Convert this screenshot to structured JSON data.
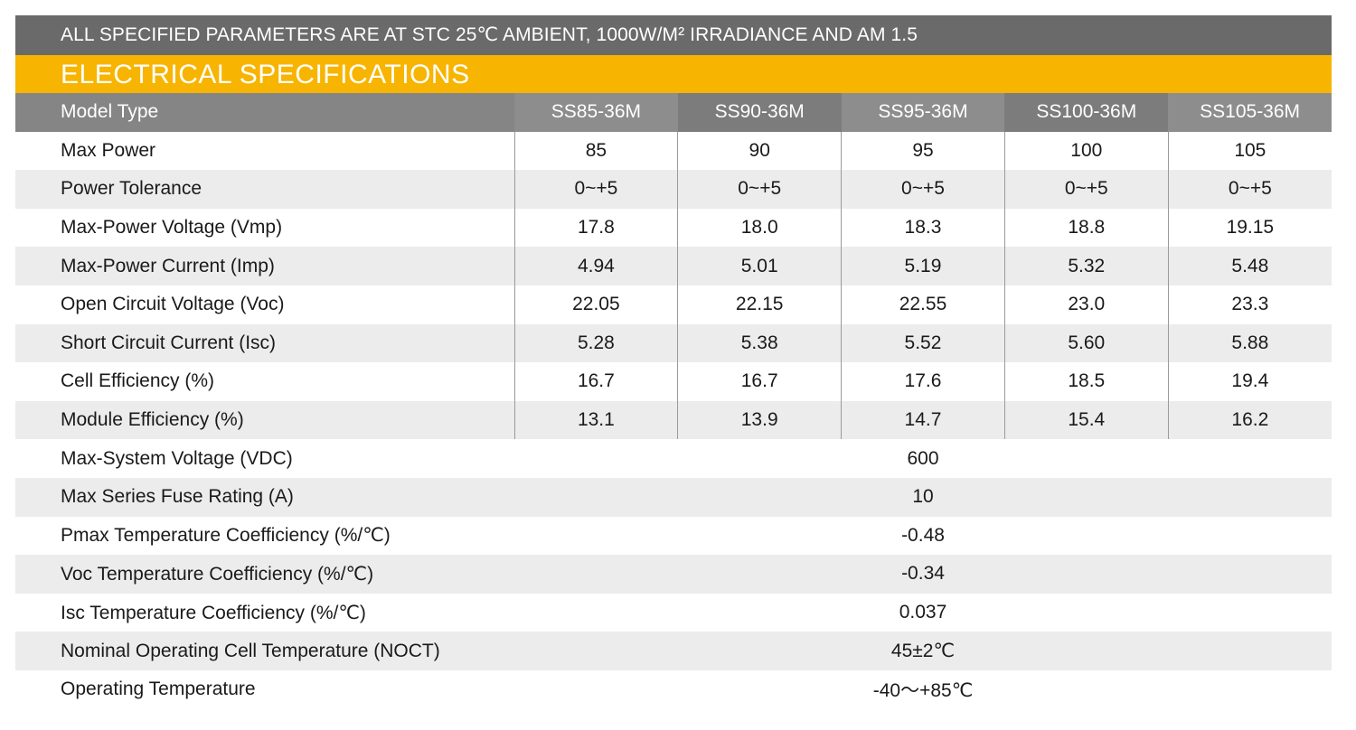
{
  "stc_note": "ALL SPECIFIED PARAMETERS ARE AT STC 25℃ AMBIENT, 1000W/M² IRRADIANCE AND AM 1.5",
  "section_title": "ELECTRICAL SPECIFICATIONS",
  "header": {
    "label": "Model Type",
    "models": [
      "SS85-36M",
      "SS90-36M",
      "SS95-36M",
      "SS100-36M",
      "SS105-36M"
    ]
  },
  "per_model_rows": [
    {
      "label": "Max Power",
      "values": [
        "85",
        "90",
        "95",
        "100",
        "105"
      ]
    },
    {
      "label": "Power Tolerance",
      "values": [
        "0~+5",
        "0~+5",
        "0~+5",
        "0~+5",
        "0~+5"
      ]
    },
    {
      "label": "Max-Power Voltage (Vmp)",
      "values": [
        "17.8",
        "18.0",
        "18.3",
        "18.8",
        "19.15"
      ]
    },
    {
      "label": "Max-Power Current (Imp)",
      "values": [
        "4.94",
        "5.01",
        "5.19",
        "5.32",
        "5.48"
      ]
    },
    {
      "label": "Open Circuit Voltage (Voc)",
      "values": [
        "22.05",
        "22.15",
        "22.55",
        "23.0",
        "23.3"
      ]
    },
    {
      "label": "Short Circuit Current (Isc)",
      "values": [
        "5.28",
        "5.38",
        "5.52",
        "5.60",
        "5.88"
      ]
    },
    {
      "label": "Cell Efficiency (%)",
      "values": [
        "16.7",
        "16.7",
        "17.6",
        "18.5",
        "19.4"
      ]
    },
    {
      "label": "Module Efficiency (%)",
      "values": [
        "13.1",
        "13.9",
        "14.7",
        "15.4",
        "16.2"
      ]
    }
  ],
  "shared_rows": [
    {
      "label": "Max-System Voltage (VDC)",
      "value": "600"
    },
    {
      "label": "Max Series Fuse Rating (A)",
      "value": "10"
    },
    {
      "label": "Pmax Temperature Coefficiency (%/℃)",
      "value": "-0.48"
    },
    {
      "label": "Voc Temperature Coefficiency (%/℃)",
      "value": "-0.34"
    },
    {
      "label": "Isc Temperature Coefficiency (%/℃)",
      "value": "0.037"
    },
    {
      "label": "Nominal Operating Cell Temperature (NOCT)",
      "value": "45±2℃"
    },
    {
      "label": "Operating Temperature",
      "value": "-40～+85℃"
    }
  ]
}
